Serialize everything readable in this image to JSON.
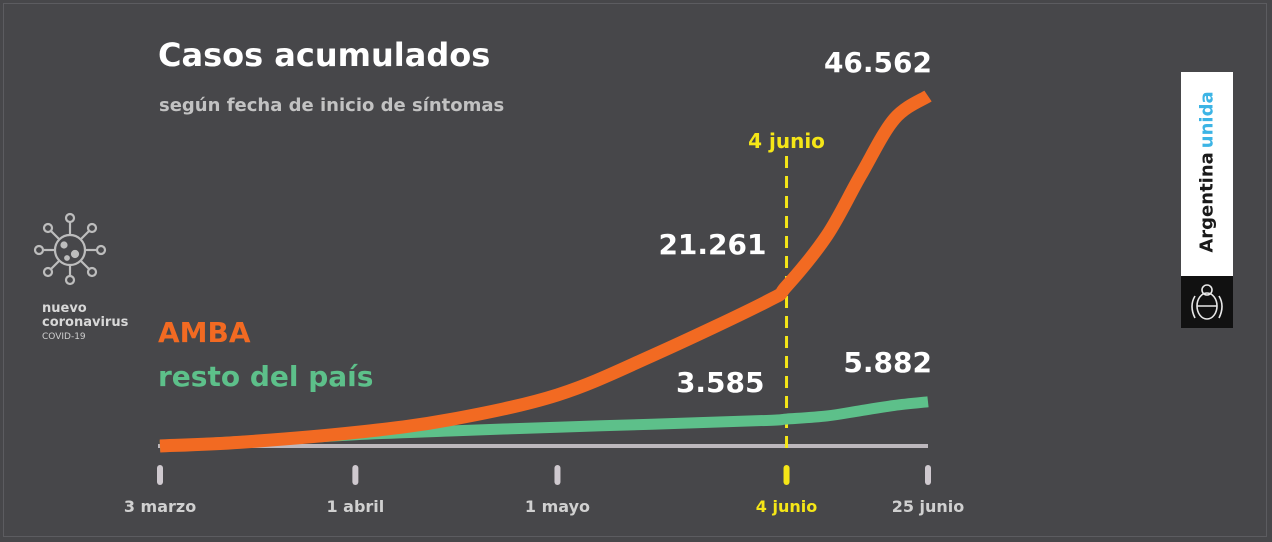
{
  "chart_data": {
    "type": "line",
    "title": "Casos acumulados",
    "subtitle": "según fecha de inicio de síntomas",
    "x": [
      "2020-03-03",
      "2020-03-15",
      "2020-04-01",
      "2020-04-15",
      "2020-05-01",
      "2020-05-15",
      "2020-06-01",
      "2020-06-04",
      "2020-06-10",
      "2020-06-15",
      "2020-06-20",
      "2020-06-25"
    ],
    "series": [
      {
        "name": "AMBA",
        "color": "#f26a22",
        "values": [
          0,
          500,
          1800,
          3500,
          6800,
          12000,
          19200,
          21261,
          28000,
          36000,
          43500,
          46562
        ]
      },
      {
        "name": "resto del país",
        "color": "#5dc08a",
        "values": [
          0,
          600,
          1500,
          2000,
          2500,
          2900,
          3400,
          3585,
          4000,
          4700,
          5400,
          5882
        ]
      }
    ],
    "xticks": [
      {
        "date": "2020-03-03",
        "label": "3 marzo"
      },
      {
        "date": "2020-04-01",
        "label": "1 abril"
      },
      {
        "date": "2020-05-01",
        "label": "1 mayo"
      },
      {
        "date": "2020-06-04",
        "label": "4 junio",
        "highlight": true
      },
      {
        "date": "2020-06-25",
        "label": "25 junio"
      }
    ],
    "marker": {
      "date": "2020-06-04",
      "label": "4 junio",
      "color": "#f5e617"
    },
    "annotations": [
      {
        "series": "AMBA",
        "date": "2020-06-04",
        "text": "21.261"
      },
      {
        "series": "resto del país",
        "date": "2020-06-04",
        "text": "3.585"
      },
      {
        "series": "AMBA",
        "date": "2020-06-25",
        "text": "46.562"
      },
      {
        "series": "resto del país",
        "date": "2020-06-25",
        "text": "5.882"
      }
    ],
    "ylim": [
      0,
      46562
    ],
    "grid": false,
    "legend": "left"
  },
  "brand": {
    "line1": "nuevo",
    "line2": "coronavirus",
    "line3": "COVID-19",
    "icon": "virus-icon"
  },
  "badge": {
    "text1": "Argentina",
    "text2": "unida",
    "icon": "coat-of-arms-icon",
    "accent": "#3cb4e5"
  }
}
